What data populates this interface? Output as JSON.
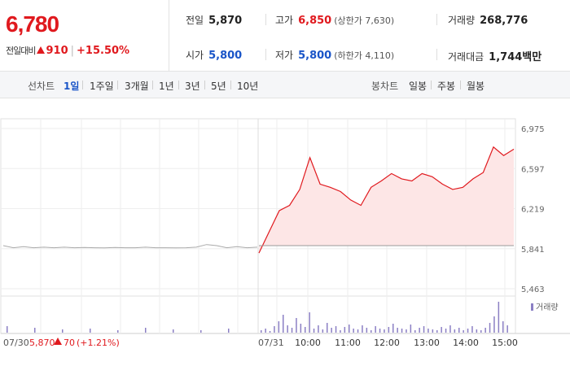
{
  "quote": {
    "price": "6,780",
    "change_label": "전일대비",
    "change_value": "910",
    "change_percent": "+15.50%"
  },
  "summary": {
    "prev_close": {
      "label": "전일",
      "value": "5,870"
    },
    "open": {
      "label": "시가",
      "value": "5,800"
    },
    "high": {
      "label": "고가",
      "value": "6,850",
      "limit_label": "(상한가 7,630)"
    },
    "low": {
      "label": "저가",
      "value": "5,800",
      "limit_label": "(하한가 4,110)"
    },
    "volume": {
      "label": "거래량",
      "value": "268,776"
    },
    "turnover": {
      "label": "거래대금",
      "value": "1,744",
      "unit": "백만"
    }
  },
  "tabs": {
    "line_label": "선차트",
    "line_tabs": [
      "1일",
      "1주일",
      "3개월",
      "1년",
      "3년",
      "5년",
      "10년"
    ],
    "candle_label": "봉차트",
    "candle_tabs": [
      "일봉",
      "주봉",
      "월봉"
    ]
  },
  "chart": {
    "y_ticks": [
      "6,975",
      "6,597",
      "6,219",
      "5,841",
      "5,463"
    ],
    "x_times": [
      "10:00",
      "11:00",
      "12:00",
      "13:00",
      "14:00",
      "15:00"
    ],
    "prev_day_label": "07/30",
    "prev_day_price": "5,870",
    "prev_day_change": "70",
    "prev_day_pct": "(+1.21%)",
    "cur_day_label": "07/31",
    "volume_legend": "거래량",
    "colors": {
      "up": "#e0191e",
      "down": "#1a55c8",
      "area": "#fde6e6",
      "volume": "#8b7fc4",
      "prev_line": "#aaaaaa"
    }
  },
  "chart_data": {
    "type": "line",
    "title": "",
    "y_ticks": [
      6975,
      6597,
      6219,
      5841,
      5463
    ],
    "ylim": [
      5463,
      6975
    ],
    "baseline": 5870,
    "series": [
      {
        "values": [
          5800,
          6000,
          6200,
          6250,
          6400,
          6700,
          6450,
          6420,
          6380,
          6300,
          6250,
          6420,
          6480,
          6550,
          6500,
          6480,
          6550,
          6520,
          6450,
          6400,
          6420,
          6500,
          6560,
          6800,
          6720,
          6780
        ]
      }
    ]
  }
}
